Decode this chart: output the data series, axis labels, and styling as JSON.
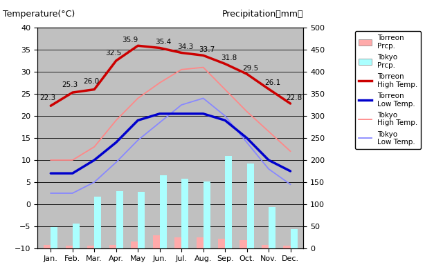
{
  "months": [
    "Jan.",
    "Feb.",
    "Mar.",
    "Apr.",
    "May",
    "Jun.",
    "Jul.",
    "Aug.",
    "Sep.",
    "Oct.",
    "Nov.",
    "Dec."
  ],
  "torreon_high": [
    22.3,
    25.3,
    26.0,
    32.5,
    35.9,
    35.4,
    34.3,
    33.7,
    31.8,
    29.5,
    26.1,
    22.8
  ],
  "torreon_low": [
    7.0,
    7.0,
    10.0,
    14.0,
    19.0,
    20.5,
    20.5,
    20.5,
    19.0,
    15.0,
    10.0,
    7.5
  ],
  "tokyo_high": [
    10.0,
    10.0,
    13.0,
    19.0,
    24.0,
    27.5,
    30.5,
    31.0,
    26.0,
    21.0,
    16.5,
    12.0
  ],
  "tokyo_low": [
    2.5,
    2.5,
    5.0,
    9.5,
    14.5,
    18.5,
    22.5,
    24.0,
    20.0,
    14.0,
    8.0,
    4.5
  ],
  "torreon_prcp_mm": [
    8,
    6,
    6,
    8,
    16,
    30,
    25,
    25,
    22,
    18,
    8,
    7
  ],
  "tokyo_prcp_mm": [
    48,
    56,
    117,
    130,
    128,
    165,
    158,
    152,
    210,
    192,
    93,
    44
  ],
  "title_left": "Temperature(°C)",
  "title_right": "Precipitation（mm）",
  "ylim_temp": [
    -10,
    40
  ],
  "ylim_prcp": [
    0,
    500
  ],
  "torreon_high_color": "#cc0000",
  "torreon_low_color": "#0000cc",
  "tokyo_high_color": "#ff8888",
  "tokyo_low_color": "#8888ff",
  "torreon_prcp_color": "#ffaaaa",
  "tokyo_prcp_color": "#aaffff",
  "plot_bg": "#c0c0c0",
  "label_fontsize": 9,
  "annot_fontsize": 7.5,
  "tick_fontsize": 8
}
